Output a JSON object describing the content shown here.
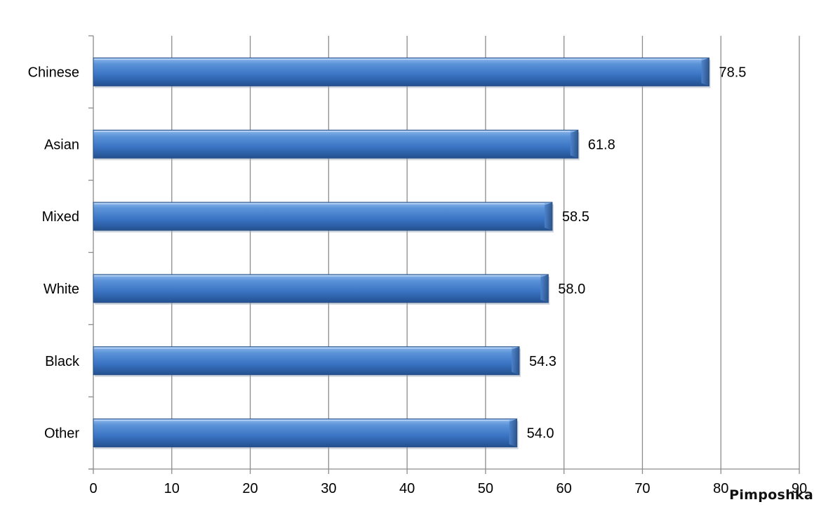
{
  "chart_data": {
    "type": "bar",
    "orientation": "horizontal",
    "categories": [
      "Chinese",
      "Asian",
      "Mixed",
      "White",
      "Black",
      "Other"
    ],
    "values": [
      78.5,
      61.8,
      58.5,
      58.0,
      54.3,
      54.0
    ],
    "value_labels": [
      "78.5",
      "61.8",
      "58.5",
      "58.0",
      "54.3",
      "54.0"
    ],
    "xlim": [
      0,
      90
    ],
    "xticks": [
      0,
      10,
      20,
      30,
      40,
      50,
      60,
      70,
      80,
      90
    ],
    "grid": true,
    "legend": "none",
    "bar_color": "#3a74c4",
    "bar_edge_color": "#2a5186"
  },
  "watermark": "Pimposhka"
}
